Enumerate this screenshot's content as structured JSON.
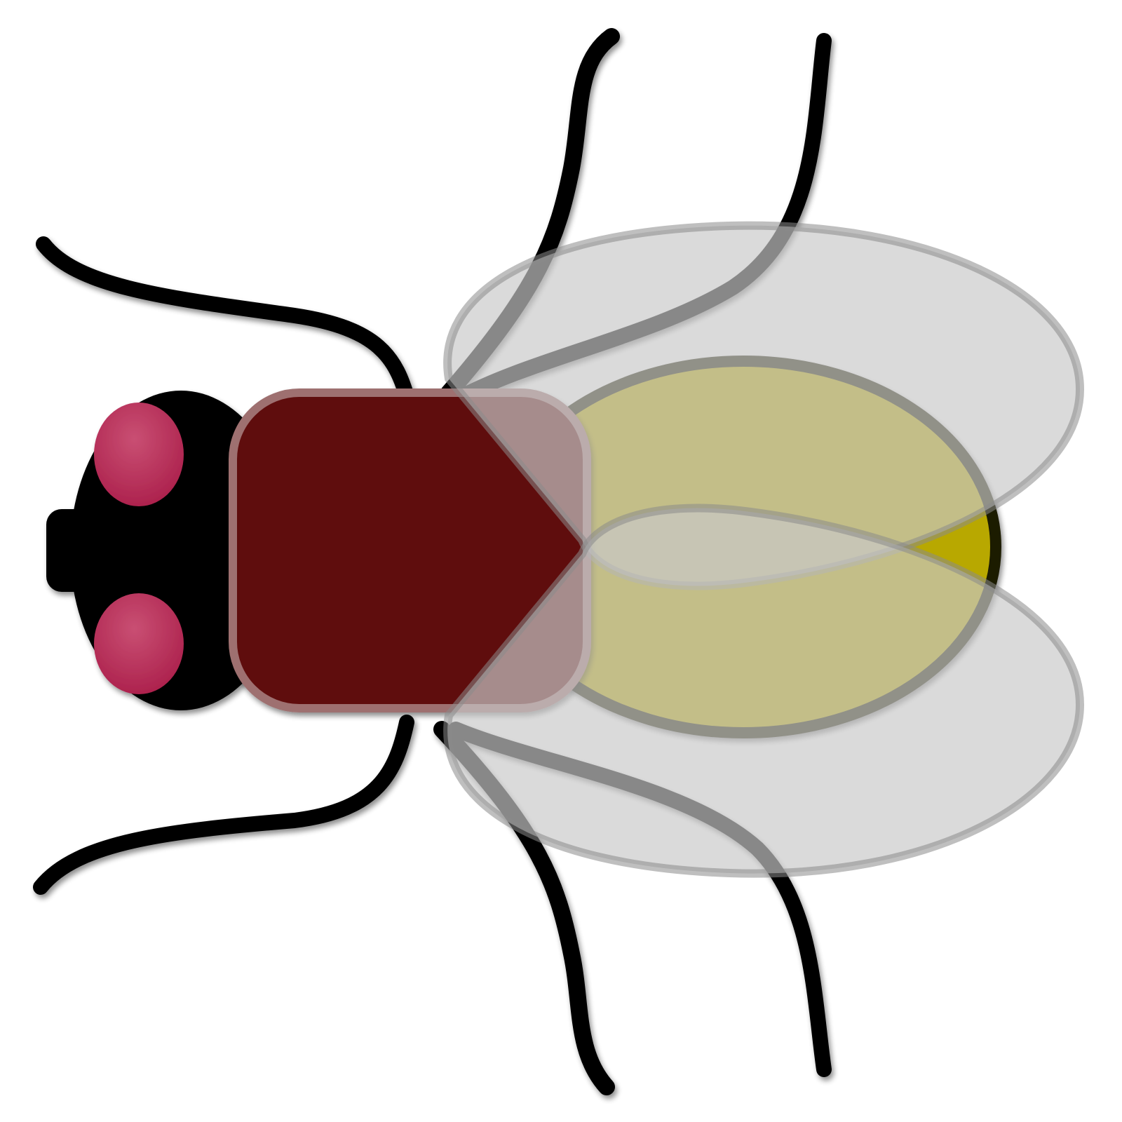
{
  "illustration": {
    "subject": "fly-icon",
    "colors": {
      "background": "#ffffff",
      "head": "#000000",
      "eyes": "#ab1f4b",
      "eye_highlight": "#c94f73",
      "thorax": "#5f0a0b",
      "thorax_rim": "#9e6f70",
      "abdomen_fill": "#b8a800",
      "abdomen_outline": "#1c1a00",
      "legs": "#000000",
      "wings": "#c8c8c8",
      "wing_outline": "#8a8a8a"
    }
  }
}
